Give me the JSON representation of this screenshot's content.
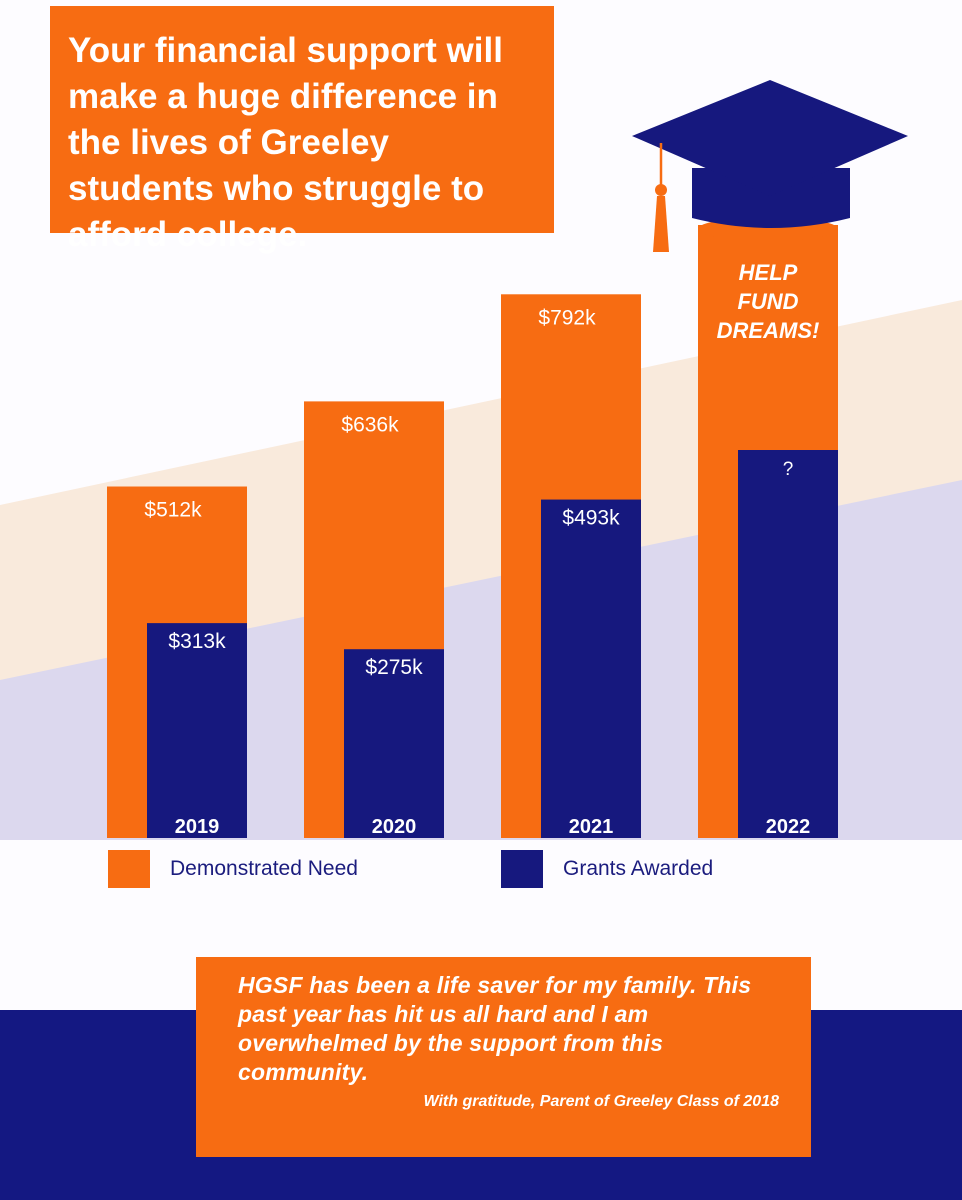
{
  "headline": "Your financial support will make a huge difference in the lives of Greeley students who struggle to afford college.",
  "colors": {
    "orange": "#f76c12",
    "navy": "#16187e",
    "cream_band": "#f9eadc",
    "lavender_band": "#dcd8ee",
    "footer_navy": "#141882"
  },
  "cap_icon": "graduation-cap-icon",
  "chart_data": {
    "type": "bar",
    "categories": [
      "2019",
      "2020",
      "2021",
      "2022"
    ],
    "series": [
      {
        "name": "Demonstrated Need",
        "values": [
          512,
          636,
          792,
          null
        ],
        "labels": [
          "$512k",
          "$636k",
          "$792k",
          ""
        ]
      },
      {
        "name": "Grants Awarded",
        "values": [
          313,
          275,
          493,
          null
        ],
        "labels": [
          "$313k",
          "$275k",
          "$493k",
          "?"
        ]
      }
    ],
    "unit": "thousand USD",
    "callout": "HELP FUND DREAMS!",
    "legend": {
      "position": "bottom"
    }
  },
  "quote": {
    "text": "HGSF has been a life saver for my family. This past year has hit us all hard and I am overwhelmed by the support from this community.",
    "attribution": "With gratitude, Parent of Greeley Class of 2018"
  }
}
